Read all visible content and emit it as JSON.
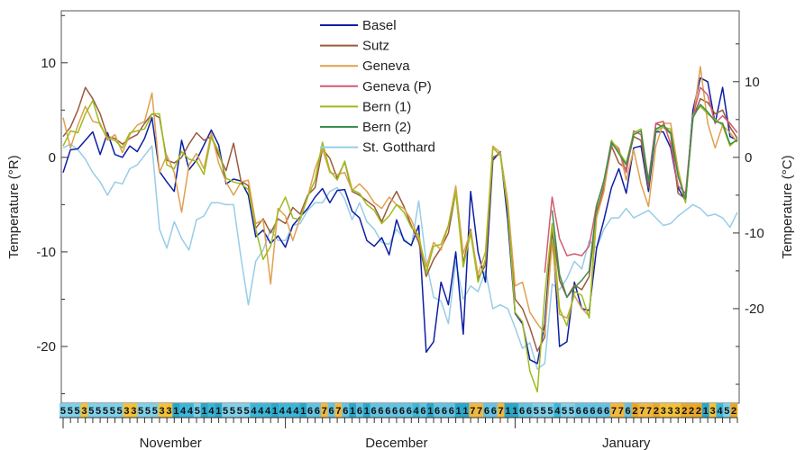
{
  "chart_data": {
    "type": "line",
    "title": "",
    "ylabel": "Temperature (°R)",
    "ylabel_right": "Temperature (°C)",
    "ylim": [
      -26,
      15.5
    ],
    "yticks": [
      10,
      0,
      -10,
      -20
    ],
    "yticks_right": [
      10,
      0,
      -10,
      -20
    ],
    "months": [
      "November",
      "December",
      "January"
    ],
    "day_range": [
      1,
      92
    ],
    "month_starts": [
      1,
      31,
      62
    ],
    "legend_position": "top-center",
    "series": [
      {
        "name": "Basel",
        "color": "#0d1fa3",
        "values": [
          -1.6,
          0.8,
          0.9,
          1.8,
          2.7,
          0.3,
          2.6,
          0.3,
          0.0,
          1.2,
          0.6,
          2.0,
          4.2,
          -1.5,
          -2.6,
          -3.6,
          1.8,
          -1.3,
          -0.3,
          1.3,
          2.9,
          1.3,
          -2.8,
          -2.3,
          -2.5,
          -4.0,
          -8.4,
          -7.7,
          -9.1,
          -8.3,
          -9.5,
          -7.2,
          -6.3,
          -5.4,
          -4.2,
          -3.3,
          -4.8,
          -3.5,
          -3.4,
          -5.7,
          -6.4,
          -8.8,
          -9.4,
          -8.5,
          -10.3,
          -6.6,
          -8.8,
          -9.3,
          -7.2,
          -20.6,
          -19.5,
          -13.2,
          -15.6,
          -10.0,
          -18.7,
          -3.6,
          -10.0,
          -13.2,
          -0.3,
          0.6,
          -6.6,
          -16.5,
          -17.6,
          -21.4,
          -21.8,
          -17.6,
          -7.2,
          -20.0,
          -19.5,
          -13.2,
          -16.0,
          -16.2,
          -9.6,
          -6.6,
          -3.2,
          -1.2,
          -3.8,
          1.0,
          1.2,
          -3.6,
          2.7,
          2.7,
          1.0,
          -3.2,
          -4.6,
          5.0,
          8.4,
          8.0,
          3.6,
          7.4,
          2.2,
          1.8
        ]
      },
      {
        "name": "Sutz",
        "color": "#9b5a3c",
        "values": [
          2.2,
          3.2,
          5.0,
          7.4,
          6.2,
          4.6,
          2.2,
          2.0,
          1.4,
          2.0,
          2.4,
          3.6,
          4.6,
          4.2,
          -0.3,
          -0.6,
          0.0,
          1.4,
          2.6,
          1.8,
          2.2,
          0.2,
          -1.4,
          1.5,
          -2.5,
          -3.0,
          -7.5,
          -6.5,
          -8.0,
          -6.5,
          -7.0,
          -5.3,
          -6.0,
          -4.0,
          -3.2,
          0.9,
          -0.1,
          -2.2,
          -0.5,
          -3.6,
          -4.0,
          -4.6,
          -5.2,
          -6.8,
          -5.0,
          -3.6,
          -5.2,
          -7.2,
          -9.0,
          -12.6,
          -10.8,
          -9.6,
          -8.0,
          -3.6,
          -11.2,
          -7.6,
          -12.8,
          -11.4,
          0.0,
          0.4,
          -5.6,
          -15.0,
          -16.0,
          -18.0,
          -20.5,
          -19.0,
          -7.2,
          -13.0,
          -14.8,
          -13.5,
          -14.0,
          -12.6,
          -5.8,
          -3.2,
          1.2,
          -0.6,
          -1.2,
          2.2,
          1.8,
          -3.2,
          3.6,
          3.2,
          2.5,
          -3.8,
          -4.4,
          4.2,
          6.2,
          5.8,
          4.6,
          5.0,
          3.2,
          2.0
        ]
      },
      {
        "name": "Geneva",
        "color": "#e0a04e",
        "values": [
          4.2,
          1.0,
          3.4,
          5.4,
          3.8,
          3.6,
          1.8,
          2.4,
          0.5,
          2.4,
          3.4,
          3.8,
          6.8,
          -1.6,
          0.2,
          -1.6,
          -5.8,
          -0.8,
          0.4,
          -1.2,
          2.6,
          -0.6,
          -2.6,
          -4.0,
          -2.6,
          -2.4,
          -7.0,
          -6.6,
          -13.4,
          -5.4,
          -6.2,
          -8.8,
          -6.4,
          -4.2,
          -1.2,
          0.9,
          -1.6,
          -1.8,
          -1.6,
          -3.5,
          -2.8,
          -3.6,
          -4.8,
          -5.4,
          -4.2,
          -5.0,
          -5.4,
          -6.6,
          -8.6,
          -11.6,
          -9.0,
          -9.8,
          -7.2,
          -3.0,
          -10.2,
          -7.8,
          -12.4,
          -10.0,
          1.2,
          0.5,
          -4.6,
          -13.6,
          -13.2,
          -16.4,
          -17.6,
          -18.6,
          -9.0,
          -16.6,
          -17.0,
          -14.6,
          -16.0,
          -16.8,
          -6.4,
          -3.6,
          1.6,
          1.0,
          -2.4,
          0.8,
          -2.8,
          -5.2,
          1.2,
          3.6,
          3.6,
          -1.2,
          -4.6,
          4.0,
          9.6,
          3.6,
          1.0,
          3.4,
          2.6,
          1.6
        ]
      },
      {
        "name": "Geneva (P)",
        "color": "#d45a72",
        "values": [
          null,
          null,
          null,
          null,
          null,
          null,
          null,
          null,
          null,
          null,
          null,
          null,
          null,
          null,
          null,
          null,
          null,
          null,
          null,
          null,
          null,
          null,
          null,
          null,
          null,
          null,
          null,
          null,
          null,
          null,
          null,
          null,
          null,
          null,
          null,
          null,
          null,
          null,
          null,
          null,
          null,
          null,
          null,
          null,
          null,
          null,
          null,
          null,
          null,
          null,
          null,
          null,
          null,
          null,
          null,
          null,
          null,
          null,
          null,
          null,
          null,
          null,
          null,
          null,
          null,
          -12.2,
          -4.2,
          -8.6,
          -10.4,
          -10.2,
          -10.4,
          -9.4,
          -5.0,
          -2.8,
          1.4,
          0.8,
          -1.6,
          2.8,
          2.4,
          -2.4,
          3.6,
          3.8,
          1.4,
          -3.0,
          -3.8,
          4.4,
          7.4,
          6.6,
          3.6,
          4.4,
          3.6,
          2.6
        ]
      },
      {
        "name": "Bern (1)",
        "color": "#9cbc1e",
        "values": [
          1.2,
          2.8,
          2.6,
          4.6,
          6.0,
          3.4,
          2.0,
          1.8,
          1.0,
          2.6,
          2.8,
          3.0,
          4.6,
          4.6,
          -0.8,
          -1.2,
          0.6,
          -0.2,
          -0.4,
          -1.8,
          2.2,
          0.6,
          -2.2,
          -2.6,
          -2.8,
          -3.4,
          -7.6,
          -10.8,
          -9.4,
          -5.8,
          -4.2,
          -6.4,
          -6.6,
          -4.2,
          -2.4,
          1.6,
          -1.4,
          -2.4,
          -0.4,
          -3.4,
          -3.8,
          -5.0,
          -5.6,
          -7.0,
          -6.2,
          -5.0,
          -5.8,
          -7.4,
          -8.2,
          -12.2,
          -9.4,
          -9.2,
          -7.2,
          -3.6,
          -11.6,
          -8.0,
          -13.2,
          -10.8,
          1.0,
          0.2,
          -5.4,
          -16.4,
          -17.4,
          -22.6,
          -24.8,
          -14.6,
          -7.0,
          -16.0,
          -17.8,
          -14.2,
          -14.6,
          -17.0,
          -5.0,
          -2.6,
          1.8,
          0.6,
          -0.6,
          2.6,
          3.0,
          -2.6,
          2.8,
          3.2,
          3.0,
          -1.6,
          -4.8,
          4.4,
          5.4,
          4.6,
          4.0,
          3.4,
          1.2,
          2.0
        ]
      },
      {
        "name": "Bern (2)",
        "color": "#3f8c50",
        "values": [
          null,
          null,
          null,
          null,
          null,
          null,
          null,
          null,
          null,
          null,
          null,
          null,
          null,
          null,
          null,
          null,
          null,
          null,
          null,
          null,
          null,
          null,
          null,
          null,
          null,
          null,
          null,
          null,
          null,
          null,
          null,
          null,
          null,
          null,
          null,
          null,
          null,
          null,
          null,
          null,
          null,
          null,
          null,
          null,
          null,
          null,
          null,
          null,
          null,
          null,
          null,
          null,
          null,
          null,
          null,
          null,
          null,
          null,
          null,
          null,
          null,
          null,
          null,
          null,
          null,
          null,
          -5.6,
          -12.4,
          -14.8,
          -13.8,
          -13.0,
          -12.0,
          -5.2,
          -2.4,
          1.6,
          0.4,
          -0.8,
          2.4,
          2.8,
          -2.6,
          3.0,
          3.4,
          2.6,
          -2.0,
          -4.4,
          4.2,
          5.6,
          4.8,
          3.8,
          3.6,
          1.4,
          1.8
        ]
      },
      {
        "name": "St. Gotthard",
        "color": "#98cde6",
        "values": [
          1.0,
          1.4,
          0.8,
          -0.2,
          -1.6,
          -2.6,
          -4.0,
          -2.6,
          -2.8,
          -1.2,
          -0.8,
          0.2,
          1.2,
          -7.6,
          -9.6,
          -6.8,
          -8.6,
          -9.8,
          -6.6,
          -6.2,
          -4.8,
          -4.8,
          -5.0,
          -5.0,
          -10.6,
          -15.6,
          -11.0,
          -9.8,
          -7.6,
          -8.8,
          -8.8,
          -7.2,
          -7.0,
          -5.6,
          -4.8,
          -4.8,
          -3.6,
          -3.2,
          -4.4,
          -6.6,
          -4.8,
          -6.8,
          -7.6,
          -9.0,
          -9.2,
          -7.6,
          -8.6,
          -9.4,
          -4.6,
          -11.0,
          -14.8,
          -15.2,
          -17.6,
          -11.0,
          -15.0,
          -13.6,
          -14.2,
          -12.0,
          -16.0,
          -15.6,
          -16.0,
          -18.0,
          -20.2,
          -19.6,
          -22.4,
          -21.8,
          -13.4,
          -14.0,
          -12.8,
          -11.0,
          -11.8,
          -8.8,
          -9.6,
          -7.6,
          -6.4,
          -6.4,
          -5.4,
          -6.4,
          -6.0,
          -5.6,
          -6.4,
          -7.2,
          -7.0,
          -6.2,
          -5.6,
          -5.0,
          -5.4,
          -6.2,
          -6.0,
          -6.4,
          -7.4,
          -5.8
        ]
      }
    ],
    "weather_codes": "555355555335553314451415555444144416676761616666664616661177667116655545566666776277233322213452",
    "weather_code_colors": {
      "1": "#2aa6c8",
      "2": "#e8a82a",
      "3": "#f2c23a",
      "4": "#3cb6d8",
      "5": "#7fd0e8",
      "6": "#64c3e2",
      "7": "#f0b840"
    }
  }
}
